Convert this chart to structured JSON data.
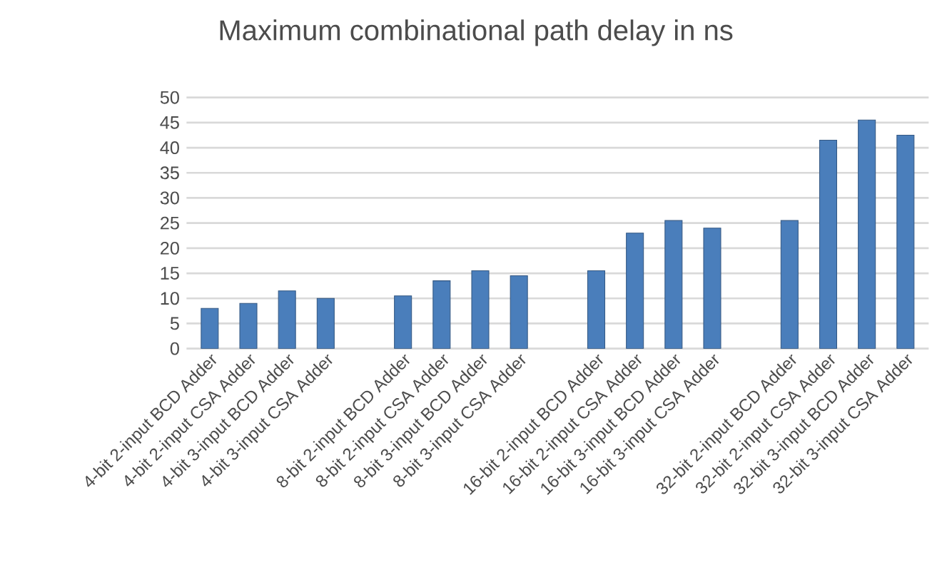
{
  "chart_data": {
    "type": "bar",
    "title": "Maximum combinational path delay in ns",
    "categories": [
      "4-bit 2-input BCD Adder",
      "4-bit 2-input CSA Adder",
      "4-bit 3-input BCD Adder",
      "4-bit 3-input CSA Adder",
      null,
      "8-bit 2-input BCD Adder",
      "8-bit 2-input CSA Adder",
      "8-bit 3-input BCD Adder",
      "8-bit 3-input CSA Adder",
      null,
      "16-bit 2-input BCD Adder",
      "16-bit 2-input CSA Adder",
      "16-bit 3-input BCD Adder",
      "16-bit 3-input CSA Adder",
      null,
      "32-bit 2-input BCD Adder",
      "32-bit 2-input CSA Adder",
      "32-bit 3-input BCD Adder",
      "32-bit 3-input CSA Adder"
    ],
    "values": [
      8,
      9,
      11.5,
      10,
      null,
      10.5,
      13.5,
      15.5,
      14.5,
      null,
      15.5,
      23,
      25.5,
      24,
      null,
      25.5,
      41.5,
      45.5,
      42.5
    ],
    "color": "#4a7ebb",
    "ylim": [
      0,
      50
    ],
    "yticks": [
      0,
      5,
      10,
      15,
      20,
      25,
      30,
      35,
      40,
      45,
      50
    ],
    "grid": "y"
  }
}
